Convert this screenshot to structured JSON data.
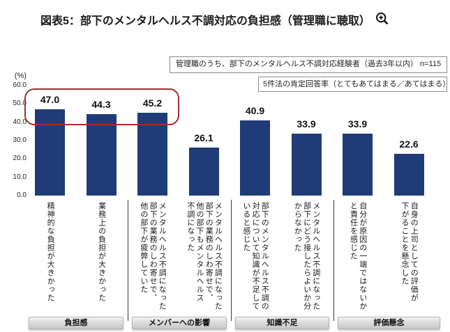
{
  "title": "図表5：部下のメンタルヘルス不調対応の負担感（管理職に聴取）",
  "icons": {
    "zoom": "zoom-in-icon"
  },
  "notes": [
    "管理職のうち、部下のメンタルヘルス不調対応経験者（過去3年以内） n=115",
    "5件法の肯定回答率（とてもあてはまる／あてはまる）"
  ],
  "chart_data": {
    "type": "bar",
    "title": "部下のメンタルヘルス不調対応の負担感（管理職に聴取）",
    "unit_label": "(%)",
    "ylim": [
      0,
      60
    ],
    "yticks": [
      60,
      50,
      40,
      30,
      20,
      10,
      0
    ],
    "grid": false,
    "bar_color": "#1f3c78",
    "values": [
      47.0,
      44.3,
      45.2,
      26.1,
      40.9,
      33.9,
      33.9,
      22.6
    ],
    "categories": [
      {
        "lines": [
          "精神的な負担が大きかった"
        ]
      },
      {
        "lines": [
          "業務上の負担が大きかった"
        ]
      },
      {
        "lines": [
          "メンタルヘルス不調になった",
          "部下の業務のしわ寄せで、",
          "他の部下が疲弊していた"
        ]
      },
      {
        "lines": [
          "メンタルヘルス不調になった",
          "部下の業務のしわ寄せで、",
          "他の部下もメンタルヘルス",
          "不調になった"
        ]
      },
      {
        "lines": [
          "部下のメンタルヘルス不調の",
          "対応について知識が不足して",
          "いると感じた"
        ]
      },
      {
        "lines": [
          "メンタルヘルス不調になった",
          "部下にどう接したらよいか分",
          "からなかった"
        ]
      },
      {
        "lines": [
          "自分が原因の一端ではないか",
          "と責任を感じた"
        ]
      },
      {
        "lines": [
          "自身の上司としての評価が",
          "下がることを懸念した"
        ]
      }
    ],
    "groups": [
      {
        "label": "負担感",
        "bar_indices": [
          0,
          1
        ]
      },
      {
        "label": "メンバーへの影響",
        "bar_indices": [
          2,
          3
        ]
      },
      {
        "label": "知識不足",
        "bar_indices": [
          4,
          5
        ]
      },
      {
        "label": "評価懸念",
        "bar_indices": [
          6,
          7
        ]
      }
    ],
    "highlight": {
      "shape": "rounded-box",
      "color": "#a03030",
      "bar_indices": [
        0,
        1,
        2
      ]
    }
  }
}
